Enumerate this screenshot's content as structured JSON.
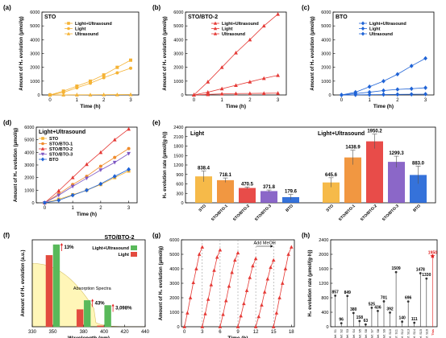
{
  "colors": {
    "orange_light": "#f5b335",
    "orange": "#f08c2c",
    "red": "#e53935",
    "purple": "#7e57c2",
    "blue": "#1f63d6",
    "bar_green": "#59b95a",
    "bar_red": "#e34b3f",
    "absorption_fill": "#fff6b8",
    "star": "#e21f1f"
  },
  "chart_data": [
    {
      "panel": "(a)",
      "id": "a",
      "type": "line",
      "title": "STO",
      "xlabel": "Time (h)",
      "ylabel": "Amount of H₂ evolution (μmol/g)",
      "xlim": [
        -0.3,
        3.3
      ],
      "ylim": [
        0,
        6000
      ],
      "xticks": [
        0,
        1,
        2,
        3
      ],
      "yticks": [
        0,
        1000,
        2000,
        3000,
        4000,
        5000,
        6000
      ],
      "legend_position": "top-left",
      "series": [
        {
          "name": "Light+Ultrasound",
          "marker": "square",
          "color": "#f5b335",
          "x": [
            0,
            0.5,
            1,
            1.5,
            2,
            2.5,
            3
          ],
          "y": [
            0,
            280,
            640,
            1000,
            1450,
            2000,
            2520
          ]
        },
        {
          "name": "Light",
          "marker": "circle",
          "color": "#f5b335",
          "x": [
            0,
            0.5,
            1,
            1.5,
            2,
            2.5,
            3
          ],
          "y": [
            0,
            180,
            520,
            850,
            1250,
            1600,
            1940
          ]
        },
        {
          "name": "Ultrasound",
          "marker": "triangle",
          "color": "#f5b335",
          "x": [
            0,
            0.5,
            1,
            1.5,
            2,
            2.5,
            3
          ],
          "y": [
            0,
            5,
            10,
            15,
            20,
            25,
            30
          ]
        }
      ]
    },
    {
      "panel": "(b)",
      "id": "b",
      "type": "line",
      "title": "STO/BTO-2",
      "xlabel": "Time (h)",
      "ylabel": "Amount of H₂ evolution (μmol/g)",
      "xlim": [
        -0.3,
        3.3
      ],
      "ylim": [
        0,
        6000
      ],
      "xticks": [
        0,
        1,
        2,
        3
      ],
      "yticks": [
        0,
        1000,
        2000,
        3000,
        4000,
        5000,
        6000
      ],
      "legend_position": "top-left",
      "series": [
        {
          "name": "Light+Ultrasound",
          "marker": "triangle",
          "color": "#e53935",
          "x": [
            0,
            0.5,
            1,
            1.5,
            2,
            2.5,
            3
          ],
          "y": [
            0,
            950,
            2000,
            3050,
            4000,
            5000,
            5850
          ]
        },
        {
          "name": "Light",
          "marker": "triangle",
          "color": "#e53935",
          "x": [
            0,
            0.5,
            1,
            1.5,
            2,
            2.5,
            3
          ],
          "y": [
            0,
            200,
            450,
            700,
            950,
            1200,
            1420
          ]
        },
        {
          "name": "Ultrasound",
          "marker": "triangle",
          "color": "#e53935",
          "x": [
            0,
            0.5,
            1,
            1.5,
            2,
            2.5,
            3
          ],
          "y": [
            0,
            40,
            80,
            100,
            110,
            120,
            130
          ]
        }
      ]
    },
    {
      "panel": "(c)",
      "id": "c",
      "type": "line",
      "title": "BTO",
      "xlabel": "Time (h)",
      "ylabel": "Amount of H₂ evolution (μmol/g)",
      "xlim": [
        -0.3,
        3.3
      ],
      "ylim": [
        0,
        6000
      ],
      "xticks": [
        0,
        1,
        2,
        3
      ],
      "yticks": [
        0,
        1000,
        2000,
        3000,
        4000,
        5000,
        6000
      ],
      "legend_position": "top-left",
      "series": [
        {
          "name": "Light+Ultrasound",
          "marker": "diamond",
          "color": "#1f63d6",
          "x": [
            0,
            0.5,
            1,
            1.5,
            2,
            2.5,
            3
          ],
          "y": [
            0,
            200,
            600,
            1000,
            1500,
            2100,
            2650
          ]
        },
        {
          "name": "Light",
          "marker": "diamond",
          "color": "#1f63d6",
          "x": [
            0,
            0.5,
            1,
            1.5,
            2,
            2.5,
            3
          ],
          "y": [
            0,
            100,
            200,
            320,
            400,
            450,
            520
          ]
        },
        {
          "name": "Ultrasound",
          "marker": "diamond",
          "color": "#1f63d6",
          "x": [
            0,
            0.5,
            1,
            1.5,
            2,
            2.5,
            3
          ],
          "y": [
            0,
            10,
            20,
            30,
            40,
            50,
            60
          ]
        }
      ]
    },
    {
      "panel": "(d)",
      "id": "d",
      "type": "line",
      "title": "Light+Ultrasound",
      "xlabel": "Time (h)",
      "ylabel": "Amount of H₂ evolution (μmol/g)",
      "xlim": [
        -0.3,
        3.3
      ],
      "ylim": [
        0,
        6000
      ],
      "xticks": [
        0,
        1,
        2,
        3
      ],
      "yticks": [
        0,
        1000,
        2000,
        3000,
        4000,
        5000,
        6000
      ],
      "legend_position": "top-left",
      "series": [
        {
          "name": "STO",
          "marker": "square",
          "color": "#f5b335",
          "x": [
            0,
            0.5,
            1,
            1.5,
            2,
            2.5,
            3
          ],
          "y": [
            0,
            280,
            640,
            1000,
            1450,
            2000,
            2520
          ]
        },
        {
          "name": "STO/BTO-1",
          "marker": "circle",
          "color": "#f08c2c",
          "x": [
            0,
            0.5,
            1,
            1.5,
            2,
            2.5,
            3
          ],
          "y": [
            0,
            700,
            1450,
            2100,
            2900,
            3600,
            4300
          ]
        },
        {
          "name": "STO/BTO-2",
          "marker": "triangle",
          "color": "#e53935",
          "x": [
            0,
            0.5,
            1,
            1.5,
            2,
            2.5,
            3
          ],
          "y": [
            0,
            950,
            2000,
            3050,
            4000,
            5000,
            5850
          ]
        },
        {
          "name": "STO/BTO-3",
          "marker": "triangle-down",
          "color": "#7e57c2",
          "x": [
            0,
            0.5,
            1,
            1.5,
            2,
            2.5,
            3
          ],
          "y": [
            0,
            600,
            1300,
            1950,
            2600,
            3200,
            3900
          ]
        },
        {
          "name": "BTO",
          "marker": "diamond",
          "color": "#1f63d6",
          "x": [
            0,
            0.5,
            1,
            1.5,
            2,
            2.5,
            3
          ],
          "y": [
            0,
            200,
            600,
            1000,
            1500,
            2100,
            2650
          ]
        }
      ]
    },
    {
      "panel": "(e)",
      "id": "e",
      "type": "bar",
      "ylabel": "H₂ evolution rate (μmol/(g·h))",
      "ylim": [
        0,
        2400
      ],
      "yticks": [
        0,
        300,
        600,
        900,
        1200,
        1500,
        1800,
        2100,
        2400
      ],
      "groups": [
        {
          "label": "Light",
          "categories": [
            "STO",
            "STO/BTO-1",
            "STO/BTO-2",
            "STO/BTO-3",
            "BTO"
          ],
          "values": [
            838.4,
            718.1,
            470.5,
            371.8,
            179.6
          ],
          "value_labels": [
            "838.4",
            "718.1",
            "470.5",
            "371.8",
            "179.6"
          ],
          "errors": [
            170,
            70,
            30,
            35,
            85
          ]
        },
        {
          "label": "Light+Ultrasound",
          "categories": [
            "STO",
            "STO/BTO-1",
            "STO/BTO-2",
            "STO/BTO-3",
            "BTO"
          ],
          "values": [
            645.6,
            1438.9,
            1950.2,
            1299.3,
            883.0
          ],
          "value_labels": [
            "645.6",
            "1438.9",
            "1950.2",
            "1299.3",
            "883.0"
          ],
          "errors": [
            150,
            230,
            230,
            180,
            280
          ]
        }
      ],
      "colors": [
        "#f5b335",
        "#f08c2c",
        "#e53935",
        "#7e57c2",
        "#1f63d6"
      ]
    },
    {
      "panel": "(f)",
      "id": "f",
      "type": "bar",
      "title": "STO/BTO-2",
      "xlabel": "Wavelength (nm)",
      "ylabel": "Amount of H₂ evolution (a.u.)",
      "xlim": [
        330,
        440
      ],
      "xticks": [
        330,
        350,
        380,
        400,
        420,
        440
      ],
      "categories": [
        350,
        380,
        400
      ],
      "series": [
        {
          "name": "Light+Ultrasound",
          "color": "#59b95a",
          "values": [
            1.0,
            0.32,
            0.26
          ]
        },
        {
          "name": "Light",
          "color": "#e34b3f",
          "values": [
            0.87,
            0.21,
            0.012
          ]
        }
      ],
      "annotations": [
        "13%",
        "43%",
        "3,098%"
      ],
      "extra_label": "Absorption Spectra",
      "legend_position": "top-right"
    },
    {
      "panel": "(g)",
      "id": "g",
      "type": "line",
      "xlabel": "Time (h)",
      "ylabel": "Amount of H₂ evolution (μmol/g)",
      "xlim": [
        -0.5,
        18.5
      ],
      "ylim": [
        0,
        6000
      ],
      "xticks": [
        0,
        3,
        6,
        9,
        12,
        15,
        18
      ],
      "yticks": [
        0,
        1000,
        2000,
        3000,
        4000,
        5000,
        6000
      ],
      "cycle_boundaries": [
        3,
        6,
        9,
        12,
        15
      ],
      "annotation": "Add MeOH",
      "series": [
        {
          "name": "STO/BTO-2",
          "marker": "triangle",
          "color": "#e53935",
          "cycles": [
            {
              "x": [
                0,
                0.5,
                1,
                1.5,
                2,
                2.5,
                3
              ],
              "y": [
                0,
                950,
                2000,
                3050,
                4000,
                5000,
                5500
              ]
            },
            {
              "x": [
                3,
                3.5,
                4,
                4.5,
                5,
                5.5,
                6
              ],
              "y": [
                0,
                900,
                1900,
                2900,
                3900,
                4800,
                5300
              ]
            },
            {
              "x": [
                6,
                6.5,
                7,
                7.5,
                8,
                8.5,
                9
              ],
              "y": [
                0,
                850,
                1800,
                2800,
                3750,
                4600,
                5100
              ]
            },
            {
              "x": [
                9,
                9.5,
                10,
                10.5,
                11,
                11.5,
                12
              ],
              "y": [
                0,
                750,
                1600,
                2500,
                3400,
                4200,
                4700
              ]
            },
            {
              "x": [
                12,
                12.5,
                13,
                13.5,
                14,
                14.5,
                15
              ],
              "y": [
                0,
                700,
                1500,
                2400,
                3300,
                4100,
                4600
              ]
            },
            {
              "x": [
                15,
                15.5,
                16,
                16.5,
                17,
                17.5,
                18
              ],
              "y": [
                0,
                950,
                2000,
                3000,
                4000,
                5000,
                5500
              ]
            }
          ]
        }
      ]
    },
    {
      "panel": "(h)",
      "id": "h",
      "type": "scatter",
      "ylabel": "H₂ evolution rate (μmol/(g·h))",
      "ylim": [
        0,
        2400
      ],
      "yticks": [
        0,
        400,
        800,
        1200,
        1600,
        2000,
        2400
      ],
      "categories": [
        "Ref. S1",
        "Ref. S2",
        "Ref. S3",
        "Ref. S4",
        "Ref. S5",
        "Ref. S6",
        "Ref. S7",
        "Ref. S8",
        "Ref. S9",
        "Ref. S10",
        "Ref. S11",
        "Ref. S12",
        "Ref. S13",
        "Ref. S14",
        "Ref. S15",
        "Ref. S16",
        "This"
      ],
      "values": [
        857,
        96,
        849,
        380,
        158,
        63,
        525,
        436,
        701,
        392,
        1509,
        140,
        696,
        111,
        1478,
        1330,
        1950
      ],
      "value_labels": [
        "857",
        "96",
        "849",
        "380",
        "158",
        "63",
        "525",
        "436",
        "701",
        "392",
        "1509",
        "140",
        "696",
        "111",
        "1478",
        "1330",
        "1950"
      ],
      "highlight_index": 16
    }
  ]
}
